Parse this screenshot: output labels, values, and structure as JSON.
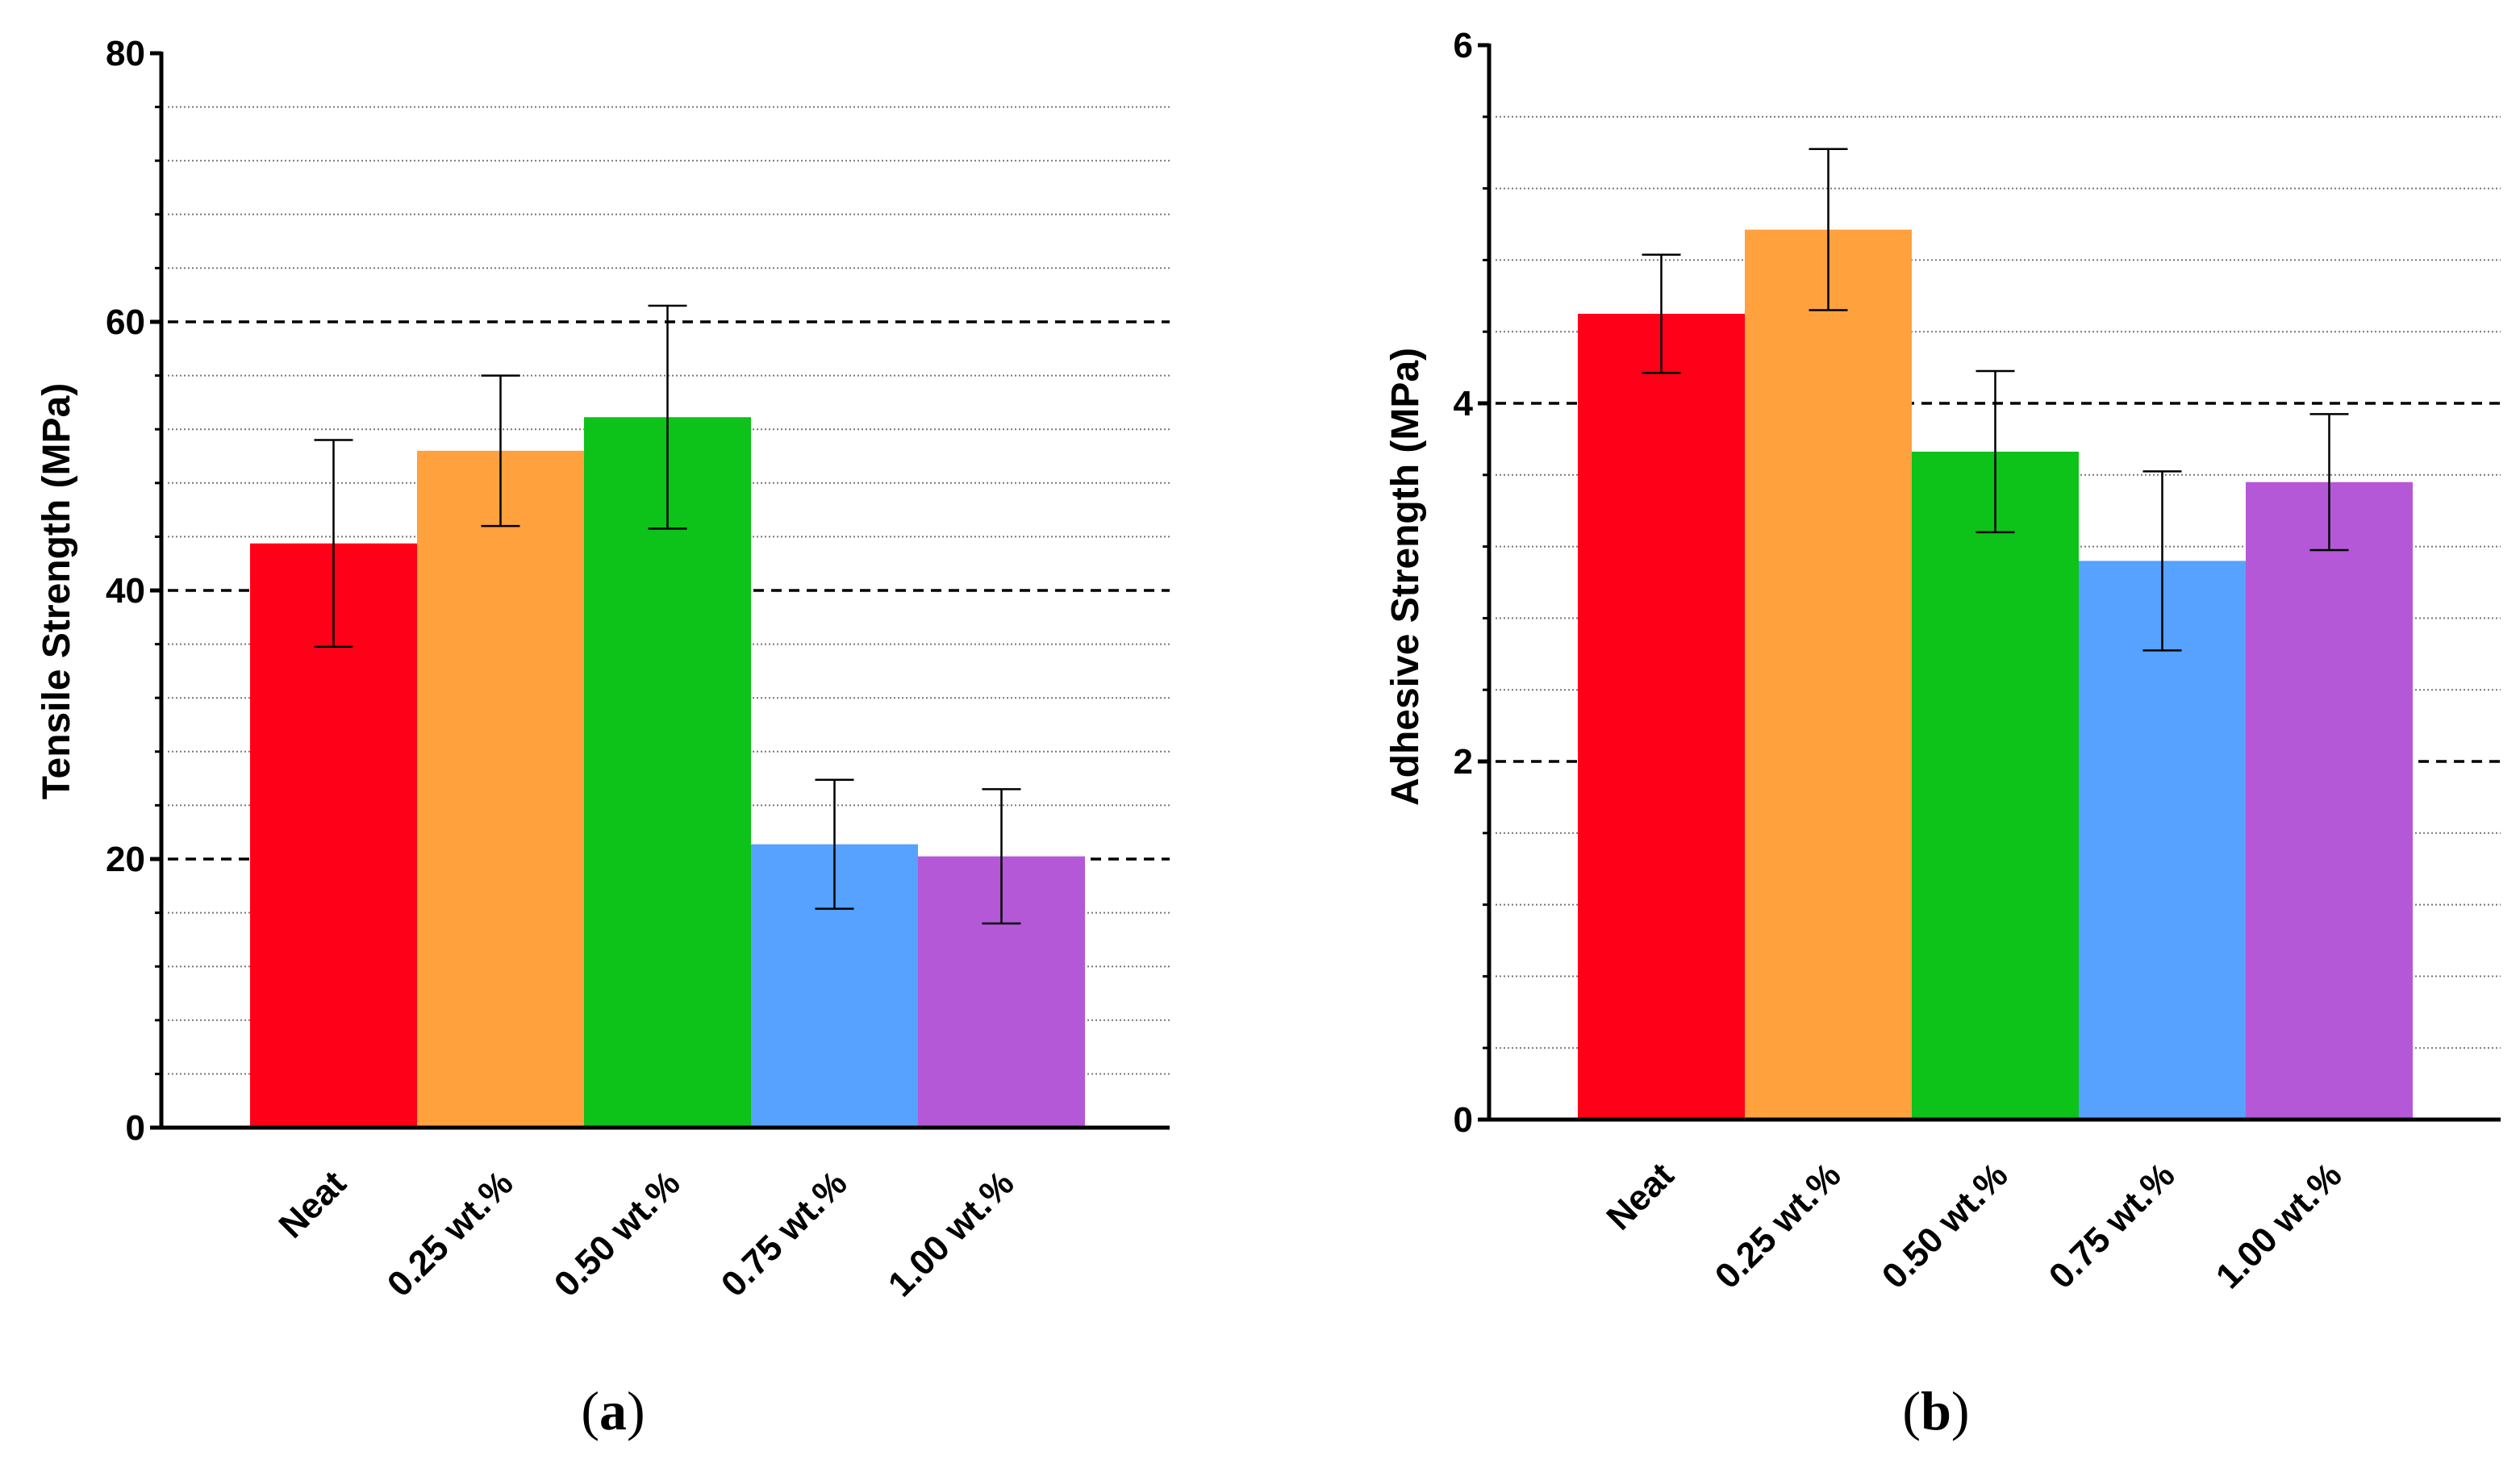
{
  "figure": {
    "panels": [
      "a",
      "b"
    ]
  },
  "chart_data": [
    {
      "panel": "a",
      "type": "bar",
      "categories": [
        "Neat",
        "0.25 wt.%",
        "0.50 wt.%",
        "0.75 wt.%",
        "1.00 wt.%"
      ],
      "values": [
        43.5,
        50.4,
        52.9,
        21.1,
        20.2
      ],
      "errors": [
        7.7,
        5.6,
        8.3,
        4.8,
        5.0
      ],
      "colors": [
        "#ff0019",
        "#ffa13d",
        "#0dc218",
        "#57a1ff",
        "#b458d8"
      ],
      "title": "",
      "xlabel": "",
      "ylabel": "Tensile Strength (MPa)",
      "ylim": [
        0,
        80
      ],
      "yticks": [
        0,
        20,
        40,
        60,
        80
      ],
      "ytick_labels": [
        "0",
        "20",
        "40",
        "60",
        "80"
      ],
      "major_gridlines": [
        20,
        40,
        60
      ],
      "minor_gridlines": [
        4,
        8,
        12,
        16,
        24,
        28,
        32,
        36,
        44,
        48,
        52,
        56,
        64,
        68,
        72,
        76
      ],
      "legend": "none"
    },
    {
      "panel": "b",
      "type": "bar",
      "categories": [
        "Neat",
        "0.25 wt.%",
        "0.50 wt.%",
        "0.75 wt.%",
        "1.00 wt.%"
      ],
      "values": [
        4.5,
        4.97,
        3.73,
        3.12,
        3.56
      ],
      "errors": [
        0.33,
        0.45,
        0.45,
        0.5,
        0.38
      ],
      "colors": [
        "#ff0019",
        "#ffa13d",
        "#0dc218",
        "#57a1ff",
        "#b458d8"
      ],
      "title": "",
      "xlabel": "",
      "ylabel": "Adhesive Strength (MPa)",
      "ylim": [
        0,
        6
      ],
      "yticks": [
        0,
        2,
        4,
        6
      ],
      "ytick_labels": [
        "0",
        "2",
        "4",
        "6"
      ],
      "major_gridlines": [
        2,
        4
      ],
      "minor_gridlines": [
        0.4,
        0.8,
        1.2,
        1.6,
        2.4,
        2.8,
        3.2,
        3.6,
        4.4,
        4.8,
        5.2,
        5.6
      ],
      "legend": "none"
    }
  ]
}
